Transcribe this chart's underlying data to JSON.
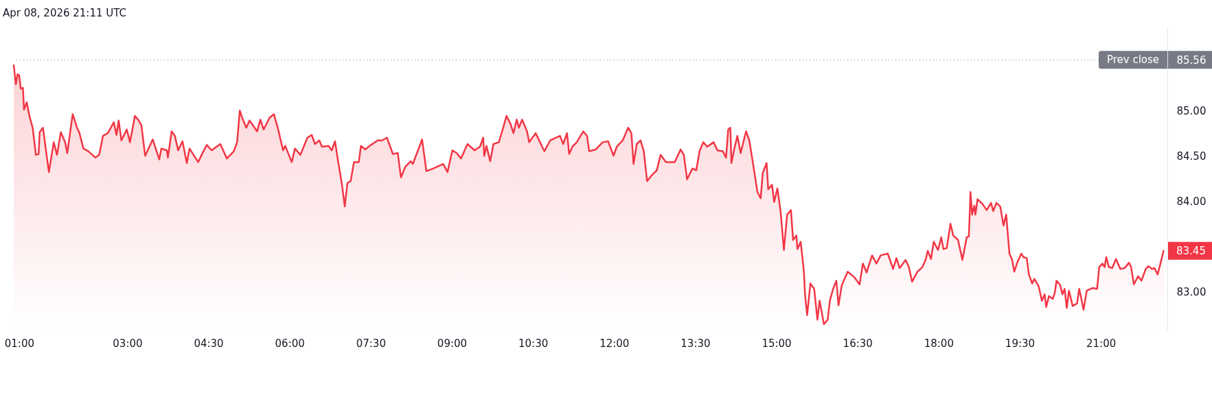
{
  "chart_data": {
    "type": "area",
    "title": "Apr 08, 2026 21:11 UTC",
    "x": [
      0.9,
      0.94,
      0.97,
      1.0,
      1.03,
      1.07,
      1.09,
      1.14,
      1.19,
      1.25,
      1.31,
      1.36,
      1.38,
      1.44,
      1.55,
      1.64,
      1.7,
      1.77,
      1.85,
      1.89,
      1.99,
      2.07,
      2.11,
      2.19,
      2.28,
      2.41,
      2.48,
      2.55,
      2.64,
      2.75,
      2.8,
      2.84,
      2.89,
      2.99,
      3.05,
      3.14,
      3.2,
      3.26,
      3.33,
      3.47,
      3.59,
      3.63,
      3.73,
      3.75,
      3.82,
      3.88,
      3.94,
      4.02,
      4.1,
      4.15,
      4.31,
      4.39,
      4.47,
      4.56,
      4.72,
      4.84,
      4.97,
      5.03,
      5.08,
      5.13,
      5.2,
      5.26,
      5.4,
      5.46,
      5.52,
      5.63,
      5.71,
      5.79,
      5.88,
      5.92,
      6.04,
      6.1,
      6.2,
      6.33,
      6.41,
      6.47,
      6.55,
      6.6,
      6.72,
      6.78,
      6.84,
      6.9,
      6.97,
      7.02,
      7.07,
      7.13,
      7.19,
      7.28,
      7.32,
      7.4,
      7.48,
      7.63,
      7.71,
      7.8,
      7.91,
      8.0,
      8.06,
      8.14,
      8.24,
      8.28,
      8.45,
      8.53,
      8.66,
      8.84,
      8.92,
      9.01,
      9.09,
      9.17,
      9.29,
      9.42,
      9.52,
      9.58,
      9.6,
      9.64,
      9.71,
      9.77,
      9.87,
      9.95,
      10.01,
      10.08,
      10.14,
      10.2,
      10.24,
      10.3,
      10.39,
      10.43,
      10.55,
      10.71,
      10.82,
      11.0,
      11.06,
      11.13,
      11.17,
      11.23,
      11.31,
      11.43,
      11.5,
      11.54,
      11.66,
      11.79,
      11.89,
      11.99,
      12.05,
      12.16,
      12.26,
      12.32,
      12.36,
      12.42,
      12.49,
      12.55,
      12.61,
      12.69,
      12.79,
      12.86,
      12.96,
      13.12,
      13.23,
      13.29,
      13.35,
      13.45,
      13.52,
      13.58,
      13.65,
      13.72,
      13.84,
      13.91,
      14.01,
      14.07,
      14.11,
      14.15,
      14.17,
      14.22,
      14.28,
      14.34,
      14.44,
      14.5,
      14.57,
      14.65,
      14.71,
      14.75,
      14.82,
      14.85,
      14.92,
      14.96,
      15.02,
      15.08,
      15.14,
      15.2,
      15.27,
      15.31,
      15.37,
      15.39,
      15.45,
      15.51,
      15.53,
      15.57,
      15.63,
      15.7,
      15.76,
      15.8,
      15.88,
      15.95,
      15.99,
      16.05,
      16.11,
      16.15,
      16.21,
      16.32,
      16.44,
      16.54,
      16.6,
      16.67,
      16.77,
      16.85,
      16.93,
      17.06,
      17.16,
      17.22,
      17.28,
      17.39,
      17.45,
      17.51,
      17.61,
      17.7,
      17.76,
      17.8,
      17.86,
      17.91,
      17.99,
      18.05,
      18.09,
      18.15,
      18.22,
      18.27,
      18.36,
      18.44,
      18.52,
      18.56,
      18.59,
      18.62,
      18.66,
      18.68,
      18.72,
      18.81,
      18.89,
      18.97,
      19.01,
      19.07,
      19.14,
      19.2,
      19.25,
      19.31,
      19.36,
      19.4,
      19.46,
      19.53,
      19.57,
      19.63,
      19.67,
      19.73,
      19.77,
      19.85,
      19.91,
      19.96,
      19.99,
      20.04,
      20.11,
      20.15,
      20.18,
      20.25,
      20.29,
      20.33,
      20.37,
      20.41,
      20.48,
      20.56,
      20.6,
      20.64,
      20.68,
      20.74,
      20.85,
      20.93,
      20.97,
      21.03,
      21.07,
      21.1,
      21.15,
      21.21,
      21.28,
      21.36,
      21.44,
      21.52,
      21.56,
      21.61,
      21.69,
      21.75,
      21.83,
      21.88,
      21.95,
      21.99,
      22.05,
      22.11,
      22.16
    ],
    "series": [
      {
        "color": "#f23645",
        "values": [
          85.5,
          85.29,
          85.4,
          85.39,
          85.24,
          85.25,
          85.01,
          85.09,
          84.94,
          84.81,
          84.51,
          84.52,
          84.76,
          84.81,
          84.32,
          84.65,
          84.51,
          84.76,
          84.65,
          84.53,
          84.96,
          84.81,
          84.76,
          84.58,
          84.55,
          84.48,
          84.51,
          84.72,
          84.75,
          84.87,
          84.73,
          84.89,
          84.67,
          84.79,
          84.65,
          84.94,
          84.9,
          84.84,
          84.5,
          84.68,
          84.46,
          84.58,
          84.56,
          84.48,
          84.77,
          84.72,
          84.56,
          84.66,
          84.42,
          84.58,
          84.43,
          84.53,
          84.62,
          84.56,
          84.63,
          84.47,
          84.55,
          84.65,
          85.0,
          84.91,
          84.81,
          84.89,
          84.77,
          84.9,
          84.79,
          84.92,
          84.96,
          84.79,
          84.56,
          84.61,
          84.43,
          84.58,
          84.51,
          84.7,
          84.73,
          84.63,
          84.67,
          84.6,
          84.61,
          84.56,
          84.66,
          84.43,
          84.18,
          83.94,
          84.2,
          84.22,
          84.43,
          84.43,
          84.61,
          84.57,
          84.61,
          84.67,
          84.67,
          84.7,
          84.52,
          84.53,
          84.26,
          84.38,
          84.44,
          84.41,
          84.68,
          84.33,
          84.36,
          84.41,
          84.32,
          84.56,
          84.53,
          84.47,
          84.63,
          84.56,
          84.6,
          84.7,
          84.5,
          84.61,
          84.44,
          84.63,
          84.65,
          84.81,
          84.94,
          84.86,
          84.75,
          84.9,
          84.81,
          84.9,
          84.77,
          84.65,
          84.75,
          84.55,
          84.67,
          84.72,
          84.63,
          84.75,
          84.52,
          84.6,
          84.65,
          84.77,
          84.72,
          84.55,
          84.57,
          84.65,
          84.66,
          84.5,
          84.6,
          84.67,
          84.81,
          84.75,
          84.41,
          84.63,
          84.67,
          84.55,
          84.22,
          84.28,
          84.34,
          84.51,
          84.43,
          84.43,
          84.57,
          84.51,
          84.24,
          84.36,
          84.34,
          84.55,
          84.65,
          84.6,
          84.65,
          84.56,
          84.55,
          84.48,
          84.79,
          84.81,
          84.42,
          84.57,
          84.72,
          84.53,
          84.77,
          84.67,
          84.41,
          84.1,
          84.03,
          84.31,
          84.42,
          84.13,
          84.18,
          83.99,
          84.14,
          83.88,
          83.46,
          83.85,
          83.9,
          83.57,
          83.62,
          83.47,
          83.55,
          83.22,
          82.97,
          82.74,
          83.09,
          83.03,
          82.69,
          82.9,
          82.64,
          82.69,
          82.9,
          83.03,
          83.12,
          82.85,
          83.07,
          83.22,
          83.16,
          83.08,
          83.31,
          83.21,
          83.4,
          83.31,
          83.4,
          83.42,
          83.25,
          83.37,
          83.26,
          83.35,
          83.27,
          83.11,
          83.22,
          83.27,
          83.35,
          83.45,
          83.36,
          83.55,
          83.46,
          83.6,
          83.47,
          83.48,
          83.75,
          83.62,
          83.57,
          83.35,
          83.6,
          83.61,
          84.1,
          83.85,
          83.95,
          83.85,
          84.02,
          83.97,
          83.9,
          83.98,
          83.89,
          83.98,
          83.94,
          83.73,
          83.85,
          83.42,
          83.35,
          83.22,
          83.33,
          83.42,
          83.38,
          83.37,
          83.19,
          83.09,
          83.14,
          83.06,
          82.9,
          82.97,
          82.83,
          82.95,
          82.92,
          82.99,
          83.12,
          83.07,
          82.97,
          83.03,
          82.82,
          83.01,
          82.84,
          82.87,
          83.03,
          82.92,
          82.8,
          83.01,
          83.04,
          83.03,
          83.27,
          83.31,
          83.27,
          83.38,
          83.27,
          83.26,
          83.36,
          83.25,
          83.26,
          83.32,
          83.27,
          83.08,
          83.17,
          83.12,
          83.25,
          83.28,
          83.25,
          83.26,
          83.19,
          83.33,
          83.45
        ],
        "value_labels": [
          null,
          null,
          null,
          null,
          null,
          null,
          null,
          null,
          null,
          null,
          null,
          null,
          null,
          null,
          null,
          null,
          null,
          null,
          null,
          null,
          null,
          null,
          null,
          null,
          null,
          null,
          null,
          null,
          null,
          null,
          null,
          null,
          null,
          null,
          null,
          null,
          null,
          null,
          null,
          null,
          null,
          null,
          null,
          null,
          null,
          null,
          null,
          null,
          null,
          null,
          null,
          null,
          null,
          null,
          null,
          null,
          null,
          null,
          null,
          null,
          null,
          null,
          null,
          null,
          null,
          null,
          null,
          null,
          null,
          null,
          null,
          null,
          null,
          null,
          null,
          null,
          null,
          null,
          null,
          null,
          null,
          null,
          null,
          null,
          null,
          null,
          null,
          null,
          null,
          null,
          null,
          null,
          null,
          null,
          null,
          null,
          null,
          null,
          null,
          null,
          null,
          null,
          null,
          null,
          null,
          null,
          null,
          null,
          null,
          null,
          null,
          null,
          null,
          null,
          null,
          null,
          null,
          null,
          null,
          null,
          null,
          null,
          null,
          null,
          null,
          null,
          null,
          null,
          null,
          null,
          null,
          null,
          null,
          null,
          null,
          null,
          null,
          null,
          null,
          null,
          null,
          null,
          null,
          null,
          null,
          null,
          null,
          null,
          null,
          null,
          null,
          null,
          null,
          null,
          null,
          null,
          null,
          null,
          null,
          null,
          null,
          null,
          null,
          null,
          null,
          null,
          null,
          null,
          null,
          null,
          null,
          null,
          null,
          null,
          null,
          null,
          null,
          null,
          null,
          null,
          null,
          null,
          null,
          null,
          null,
          null,
          null,
          null,
          null,
          null,
          null,
          null,
          null,
          null,
          null,
          null,
          null,
          null,
          null,
          null,
          null,
          null,
          null,
          null,
          null,
          null,
          null,
          null,
          null,
          null,
          null,
          null,
          null,
          null,
          null,
          null,
          null,
          null,
          null,
          null,
          null,
          null,
          null,
          null,
          null,
          null,
          null,
          null,
          null,
          null,
          null,
          null,
          null,
          null,
          null,
          null,
          null,
          null,
          null,
          null,
          null,
          null,
          null,
          null,
          null,
          null,
          null,
          null,
          null,
          null,
          null,
          null,
          null,
          null,
          null,
          null,
          null,
          null,
          null,
          null,
          null,
          null,
          null,
          null,
          null,
          null,
          null,
          null,
          null,
          null,
          null,
          null,
          null,
          null,
          null,
          null,
          null,
          null,
          null,
          null,
          null,
          null,
          null,
          null,
          null,
          null,
          null,
          null,
          null,
          null,
          null,
          null,
          null,
          null,
          null,
          null,
          null,
          null,
          null,
          null,
          null,
          null,
          "83.45"
        ]
      }
    ],
    "xlim": [
      0.9,
      22.23
    ],
    "xticks": [
      {
        "value": 1,
        "label": "01:00"
      },
      {
        "value": 3,
        "label": "03:00"
      },
      {
        "value": 4.5,
        "label": "04:30"
      },
      {
        "value": 6,
        "label": "06:00"
      },
      {
        "value": 7.5,
        "label": "07:30"
      },
      {
        "value": 9,
        "label": "09:00"
      },
      {
        "value": 10.5,
        "label": "10:30"
      },
      {
        "value": 12,
        "label": "12:00"
      },
      {
        "value": 13.5,
        "label": "13:30"
      },
      {
        "value": 15,
        "label": "15:00"
      },
      {
        "value": 16.5,
        "label": "16:30"
      },
      {
        "value": 18,
        "label": "18:00"
      },
      {
        "value": 19.5,
        "label": "19:30"
      },
      {
        "value": 21,
        "label": "21:00"
      }
    ],
    "ylim": [
      82.57,
      85.91
    ],
    "yticks": [
      {
        "value": 83,
        "label": "83.00"
      },
      {
        "value": 84,
        "label": "84.00"
      },
      {
        "value": 84.5,
        "label": "84.50"
      },
      {
        "value": 85,
        "label": "85.00"
      },
      85.56
    ],
    "ref_lines": [
      {
        "axis": "y",
        "value": 85.56,
        "label": "Prev close",
        "color": "#787b86",
        "line_style": "dotted"
      }
    ]
  }
}
